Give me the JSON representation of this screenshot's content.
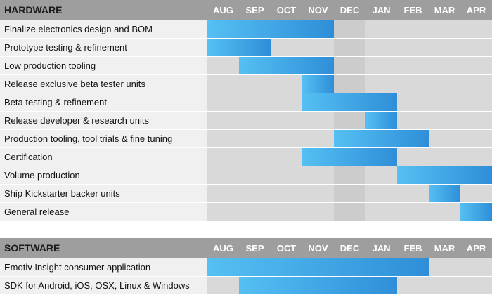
{
  "chart_data": {
    "type": "gantt",
    "months": [
      "AUG",
      "SEP",
      "OCT",
      "NOV",
      "DEC",
      "JAN",
      "FEB",
      "MAR",
      "APR"
    ],
    "sections": [
      {
        "title": "HARDWARE",
        "tasks": [
          {
            "label": "Finalize electronics design and BOM",
            "start": 0,
            "end": 4
          },
          {
            "label": "Prototype testing & refinement",
            "start": 0,
            "end": 2
          },
          {
            "label": "Low production tooling",
            "start": 1,
            "end": 4
          },
          {
            "label": "Release exclusive beta tester units",
            "start": 3,
            "end": 4
          },
          {
            "label": "Beta testing & refinement",
            "start": 3,
            "end": 6
          },
          {
            "label": "Release developer & research units",
            "start": 5,
            "end": 6
          },
          {
            "label": "Production tooling, tool trials & fine tuning",
            "start": 4,
            "end": 7
          },
          {
            "label": "Certification",
            "start": 3,
            "end": 6
          },
          {
            "label": "Volume production",
            "start": 6,
            "end": 9
          },
          {
            "label": "Ship Kickstarter backer units",
            "start": 7,
            "end": 8
          },
          {
            "label": "General release",
            "start": 8,
            "end": 9
          }
        ]
      },
      {
        "title": "SOFTWARE",
        "tasks": [
          {
            "label": "Emotiv Insight consumer application",
            "start": 0,
            "end": 7
          },
          {
            "label": "SDK for Android, iOS, OSX, Linux & Windows",
            "start": 1,
            "end": 6
          }
        ]
      }
    ],
    "colors": {
      "header_bg": "#9e9e9e",
      "header_text": "#1c1c1c",
      "month_text": "#ffffff",
      "row_label_bg": "#f0f0f0",
      "grid_bg": "#d9d9d9",
      "highlight_bg": "#cccccc",
      "bar_start": "#55c0f3",
      "bar_end": "#2f8ed8",
      "label_text": "#111111"
    }
  }
}
